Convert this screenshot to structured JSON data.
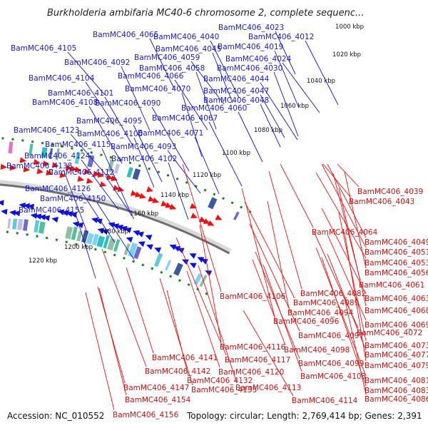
{
  "title": "Burkholderia ambifaria MC40-6 chromosome 2, complete sequenc...",
  "footer": {
    "accession": "Accession: NC_010552",
    "topology": "Topology: circular; Length: 2,769,414 bp; Genes: 2,391"
  },
  "colors": {
    "forward": "#1010dd",
    "reverse": "#ee1111",
    "blue_label": "#1a1ad0",
    "red_label": "#cc1111",
    "tick_dot": "#1f7f1f"
  },
  "ticks": [
    "1000 kbp",
    "1020 kbp",
    "1040 kbp",
    "1060 kbp",
    "1080 kbp",
    "1100 kbp",
    "1120 kbp",
    "1140 kbp",
    "1160 kbp",
    "1180 kbp",
    "1200 kbp",
    "1220 kbp"
  ],
  "blue_labels": [
    "BamMC406_4023",
    "BamMC406_4065",
    "BamMC406_4040",
    "BamMC406_4012",
    "BamMC406_4105",
    "BamMC406_4045",
    "BamMC406_4019",
    "BamMC406_4092",
    "BamMC406_4059",
    "BamMC406_4024",
    "BamMC406_4058",
    "BamMC406_4030",
    "BamMC406_4104",
    "BamMC406_4066",
    "BamMC406_4044",
    "BamMC406_4070",
    "BamMC406_4047",
    "BamMC406_4101",
    "BamMC406_4108",
    "BamMC406_4090",
    "BamMC406_4048",
    "BamMC406_4060",
    "BamMC406_4095",
    "BamMC406_4067",
    "BamMC406_4123",
    "BamMC406_4100",
    "BamMC406_4071",
    "BamMC406_4115",
    "BamMC406_4093",
    "BamMC406_4124",
    "BamMC406_4102",
    "BamMC406_4138",
    "BamMC406_4112",
    "BamMC406_4126",
    "BamMC406_4150",
    "BamMC406_4155"
  ],
  "red_labels": [
    "BamMC406_4039",
    "BamMC406_4043",
    "BamMC406_4064",
    "BamMC406_4049",
    "BamMC406_4051",
    "BamMC406_4053",
    "BamMC406_4056",
    "BamMC406_4061",
    "BamMC406_4082",
    "BamMC406_4106",
    "BamMC406_4063",
    "BamMC406_4089",
    "BamMC406_4094",
    "BamMC406_4068",
    "BamMC406_4096",
    "BamMC406_4069",
    "BamMC406_4072",
    "BamMC406_4097",
    "BamMC406_4116",
    "BamMC406_4073",
    "BamMC406_4098",
    "BamMC406_4077",
    "BamMC406_4099",
    "BamMC406_4117",
    "BamMC406_4079",
    "BamMC406_4141",
    "BamMC406_4120",
    "BamMC406_4103",
    "BamMC406_4142",
    "BamMC406_4081",
    "BamMC406_4132",
    "BamMC406_4147",
    "BamMC406_4135",
    "BamMC406_4113",
    "BamMC406_4083",
    "BamMC406_4114",
    "BamMC406_4086",
    "BamMC406_4154",
    "BamMC406_4156"
  ]
}
